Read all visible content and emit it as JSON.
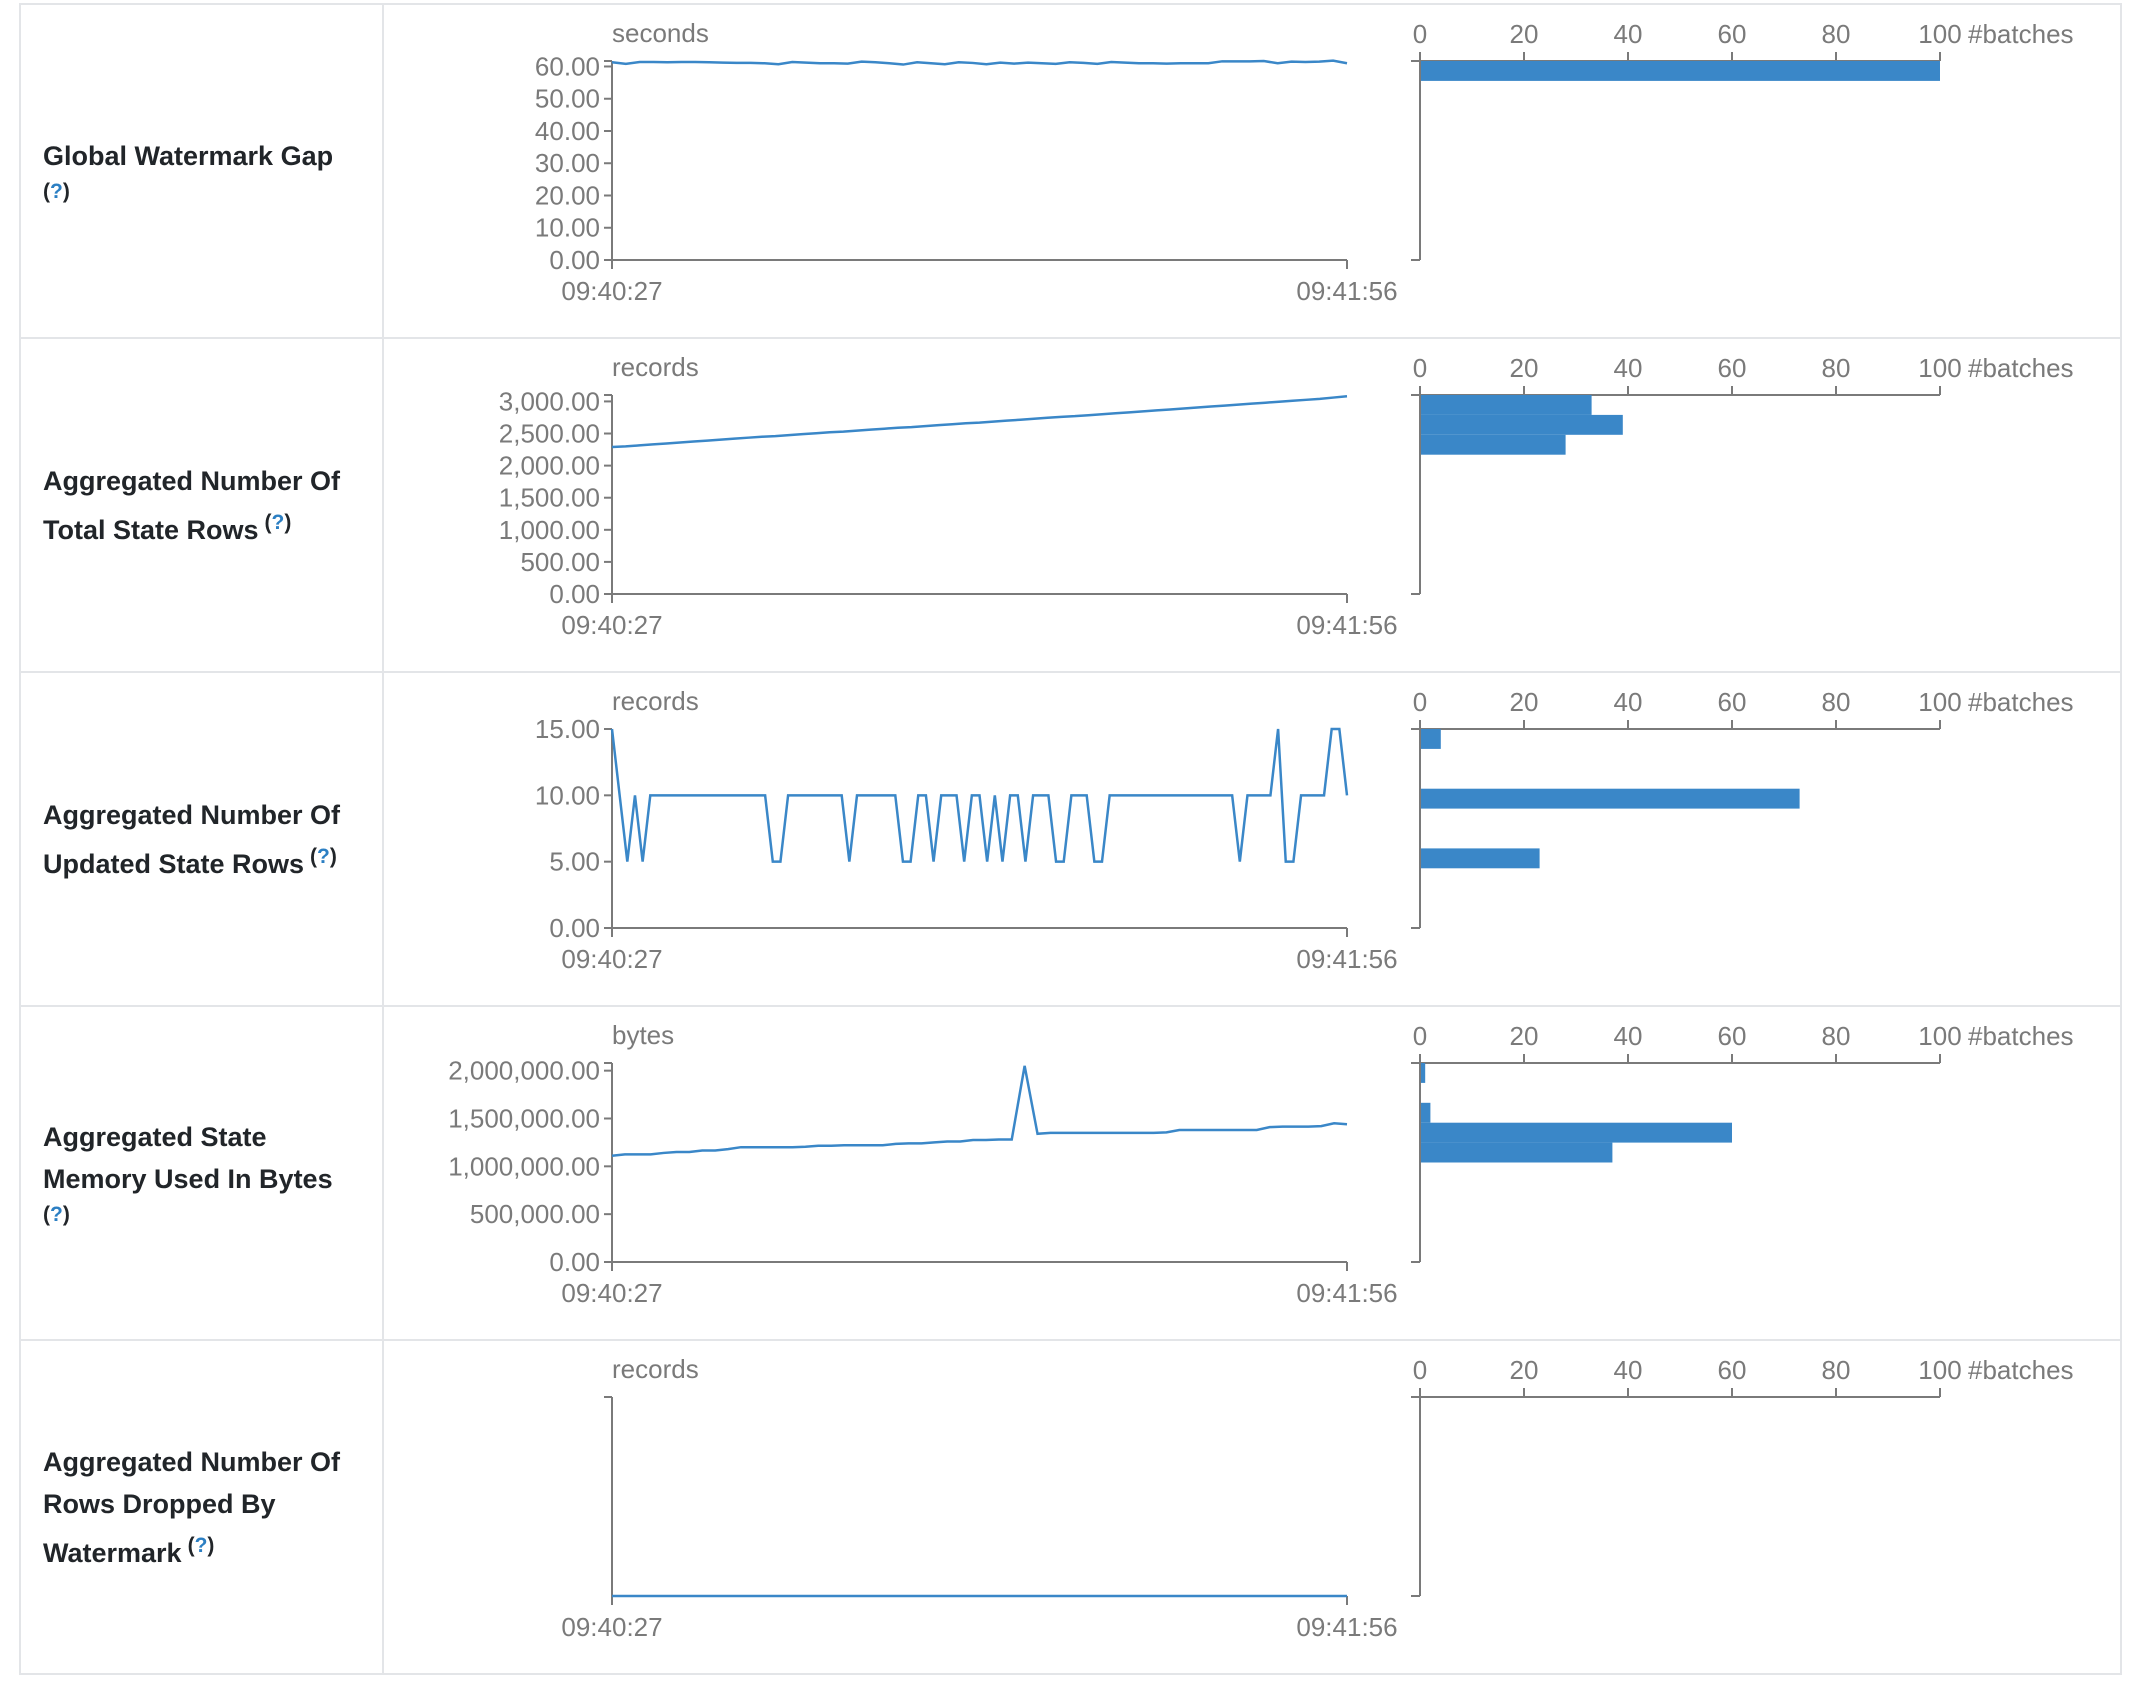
{
  "help_text": {
    "open": "(",
    "q": "?",
    "close": ")"
  },
  "colors": {
    "line": "#3a87c8",
    "bar": "#3a87c8",
    "axis": "#7a7a7a"
  },
  "rows": [
    {
      "label_lines": [
        "Global Watermark Gap"
      ],
      "help_newline": true
    },
    {
      "label_lines": [
        "Aggregated Number Of",
        "Total State Rows"
      ],
      "help_newline": false
    },
    {
      "label_lines": [
        "Aggregated Number Of",
        "Updated State Rows"
      ],
      "help_newline": false
    },
    {
      "label_lines": [
        "Aggregated State",
        "Memory Used In Bytes"
      ],
      "help_newline": true
    },
    {
      "label_lines": [
        "Aggregated Number Of",
        "Rows Dropped By",
        "Watermark"
      ],
      "help_newline": false
    }
  ],
  "chart_data": [
    {
      "type": "line",
      "unit": "seconds",
      "x_ticks": [
        "09:40:27",
        "09:41:56"
      ],
      "ylim": [
        0,
        61.7
      ],
      "y_ticks": [
        "0.00",
        "10.00",
        "20.00",
        "30.00",
        "40.00",
        "50.00",
        "60.00"
      ],
      "y_tick_values": [
        0,
        10,
        20,
        30,
        40,
        50,
        60
      ],
      "values": [
        61.3,
        60.8,
        61.4,
        61.4,
        61.3,
        61.4,
        61.4,
        61.3,
        61.2,
        61.1,
        61.1,
        61.0,
        60.7,
        61.4,
        61.2,
        61.0,
        61.0,
        60.9,
        61.5,
        61.3,
        61.0,
        60.6,
        61.3,
        61.0,
        60.7,
        61.3,
        61.1,
        60.7,
        61.2,
        60.9,
        61.2,
        61.0,
        60.8,
        61.3,
        61.1,
        60.8,
        61.4,
        61.2,
        61.0,
        61.0,
        60.9,
        61.0,
        61.0,
        61.0,
        61.6,
        61.6,
        61.6,
        61.7,
        61.0,
        61.5,
        61.4,
        61.5,
        61.8,
        61.0
      ],
      "histogram": {
        "xlabel": "#batches",
        "x_ticks": [
          "0",
          "20",
          "40",
          "60",
          "80",
          "100"
        ],
        "xlim": [
          0,
          100
        ],
        "bins_top_to_bottom": [
          100,
          0,
          0,
          0,
          0,
          0,
          0,
          0,
          0,
          0
        ]
      }
    },
    {
      "type": "line",
      "unit": "records",
      "x_ticks": [
        "09:40:27",
        "09:41:56"
      ],
      "ylim": [
        0,
        3100
      ],
      "y_ticks": [
        "0.00",
        "500.00",
        "1,000.00",
        "1,500.00",
        "2,000.00",
        "2,500.00",
        "3,000.00"
      ],
      "y_tick_values": [
        0,
        500,
        1000,
        1500,
        2000,
        2500,
        3000
      ],
      "values": [
        2290,
        2300,
        2315,
        2330,
        2345,
        2360,
        2375,
        2390,
        2405,
        2420,
        2435,
        2450,
        2460,
        2475,
        2490,
        2505,
        2520,
        2530,
        2545,
        2560,
        2575,
        2590,
        2600,
        2615,
        2630,
        2645,
        2660,
        2670,
        2685,
        2700,
        2715,
        2730,
        2745,
        2760,
        2770,
        2785,
        2800,
        2815,
        2830,
        2845,
        2860,
        2875,
        2890,
        2905,
        2920,
        2935,
        2950,
        2965,
        2980,
        2995,
        3010,
        3025,
        3040,
        3060,
        3080
      ],
      "histogram": {
        "xlabel": "#batches",
        "x_ticks": [
          "0",
          "20",
          "40",
          "60",
          "80",
          "100"
        ],
        "xlim": [
          0,
          100
        ],
        "bins_top_to_bottom": [
          33,
          39,
          28,
          0,
          0,
          0,
          0,
          0,
          0,
          0
        ]
      }
    },
    {
      "type": "line",
      "unit": "records",
      "x_ticks": [
        "09:40:27",
        "09:41:56"
      ],
      "ylim": [
        0,
        15
      ],
      "y_ticks": [
        "0.00",
        "5.00",
        "10.00",
        "15.00"
      ],
      "y_tick_values": [
        0,
        5,
        10,
        15
      ],
      "values": [
        15,
        10,
        5,
        10,
        5,
        10,
        10,
        10,
        10,
        10,
        10,
        10,
        10,
        10,
        10,
        10,
        10,
        10,
        10,
        10,
        10,
        5,
        5,
        10,
        10,
        10,
        10,
        10,
        10,
        10,
        10,
        5,
        10,
        10,
        10,
        10,
        10,
        10,
        5,
        5,
        10,
        10,
        5,
        10,
        10,
        10,
        5,
        10,
        10,
        5,
        10,
        5,
        10,
        10,
        5,
        10,
        10,
        10,
        5,
        5,
        10,
        10,
        10,
        5,
        5,
        10,
        10,
        10,
        10,
        10,
        10,
        10,
        10,
        10,
        10,
        10,
        10,
        10,
        10,
        10,
        10,
        10,
        5,
        10,
        10,
        10,
        10,
        15,
        5,
        5,
        10,
        10,
        10,
        10,
        15,
        15,
        10
      ],
      "histogram": {
        "xlabel": "#batches",
        "x_ticks": [
          "0",
          "20",
          "40",
          "60",
          "80",
          "100"
        ],
        "xlim": [
          0,
          100
        ],
        "bins_top_to_bottom": [
          4,
          0,
          0,
          73,
          0,
          0,
          23,
          0,
          0,
          0
        ]
      }
    },
    {
      "type": "line",
      "unit": "bytes",
      "x_ticks": [
        "09:40:27",
        "09:41:56"
      ],
      "ylim": [
        0,
        2080000
      ],
      "y_ticks": [
        "0.00",
        "500,000.00",
        "1,000,000.00",
        "1,500,000.00",
        "2,000,000.00"
      ],
      "y_tick_values": [
        0,
        500000,
        1000000,
        1500000,
        2000000
      ],
      "values": [
        1110000,
        1125000,
        1125000,
        1125000,
        1140000,
        1150000,
        1150000,
        1165000,
        1165000,
        1180000,
        1200000,
        1200000,
        1200000,
        1200000,
        1200000,
        1205000,
        1215000,
        1215000,
        1220000,
        1220000,
        1220000,
        1220000,
        1235000,
        1240000,
        1240000,
        1250000,
        1260000,
        1260000,
        1275000,
        1275000,
        1280000,
        1280000,
        2050000,
        1340000,
        1350000,
        1350000,
        1350000,
        1350000,
        1350000,
        1350000,
        1350000,
        1350000,
        1350000,
        1355000,
        1380000,
        1380000,
        1380000,
        1380000,
        1380000,
        1380000,
        1380000,
        1410000,
        1415000,
        1415000,
        1415000,
        1420000,
        1450000,
        1440000
      ],
      "histogram": {
        "xlabel": "#batches",
        "x_ticks": [
          "0",
          "20",
          "40",
          "60",
          "80",
          "100"
        ],
        "xlim": [
          0,
          100
        ],
        "bins_top_to_bottom": [
          1,
          0,
          2,
          60,
          37,
          0,
          0,
          0,
          0,
          0
        ]
      }
    },
    {
      "type": "line",
      "unit": "records",
      "x_ticks": [
        "09:40:27",
        "09:41:56"
      ],
      "ylim": [
        0,
        1
      ],
      "y_ticks": [],
      "y_tick_values": [],
      "values": [
        0,
        0
      ],
      "histogram": {
        "xlabel": "#batches",
        "x_ticks": [
          "0",
          "20",
          "40",
          "60",
          "80",
          "100"
        ],
        "xlim": [
          0,
          100
        ],
        "bins_top_to_bottom": [
          0,
          0,
          0,
          0,
          0,
          0,
          0,
          0,
          0,
          0
        ]
      }
    }
  ]
}
